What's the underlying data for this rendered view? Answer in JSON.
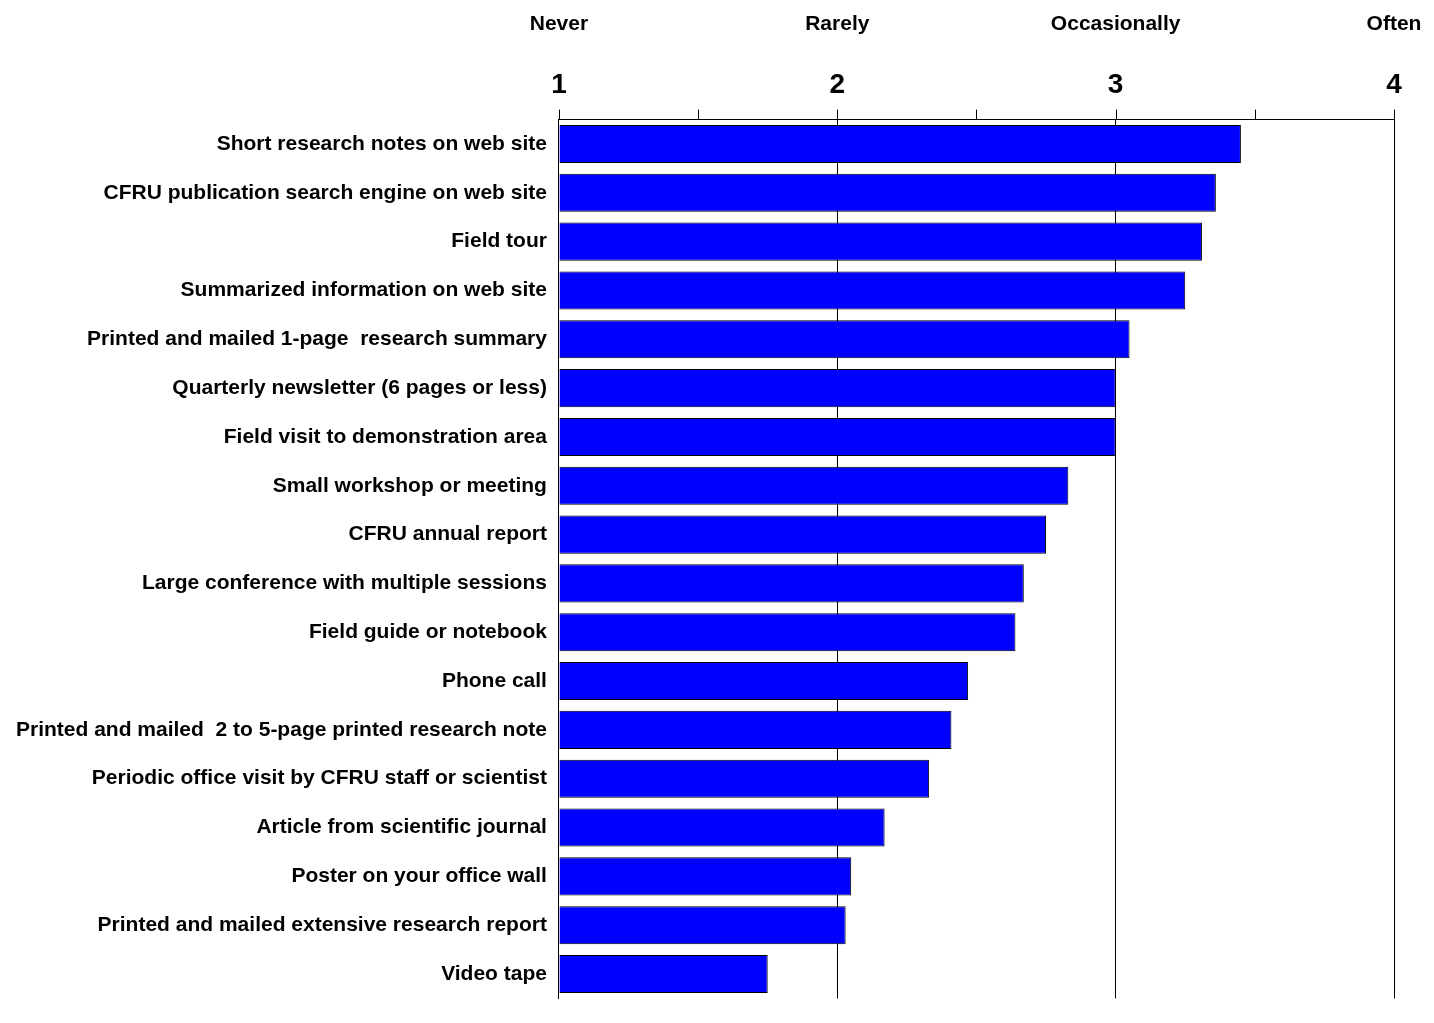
{
  "chart_data": {
    "type": "bar",
    "orientation": "horizontal",
    "categories": [
      "Short research notes on web site",
      "CFRU publication search engine on web site",
      "Field tour",
      "Summarized information on web site",
      "Printed and mailed 1-page  research summary",
      "Quarterly newsletter (6 pages or less)",
      "Field visit to demonstration area",
      "Small workshop or meeting",
      "CFRU annual report",
      "Large conference with multiple sessions",
      "Field guide or notebook",
      "Phone call",
      "Printed and mailed  2 to 5-page printed research note",
      "Periodic office visit by CFRU staff or scientist",
      "Article from scientific journal",
      "Poster on your office wall",
      "Printed and mailed extensive research report",
      "Video tape"
    ],
    "values": [
      3.45,
      3.36,
      3.31,
      3.25,
      3.05,
      3.0,
      3.0,
      2.83,
      2.75,
      2.67,
      2.64,
      2.47,
      2.41,
      2.33,
      2.17,
      2.05,
      2.03,
      1.75
    ],
    "color": "#0000ff",
    "xlim": [
      1,
      4
    ],
    "xticks": [
      1,
      {
        "value": 1.5,
        "label": null
      },
      2,
      {
        "value": 2.5,
        "label": null
      },
      3,
      {
        "value": 3.5,
        "label": null
      },
      4
    ],
    "annotations": [
      "Never",
      "Rarely",
      "Occasionally",
      "Often"
    ],
    "grid": "x",
    "legend": false
  }
}
